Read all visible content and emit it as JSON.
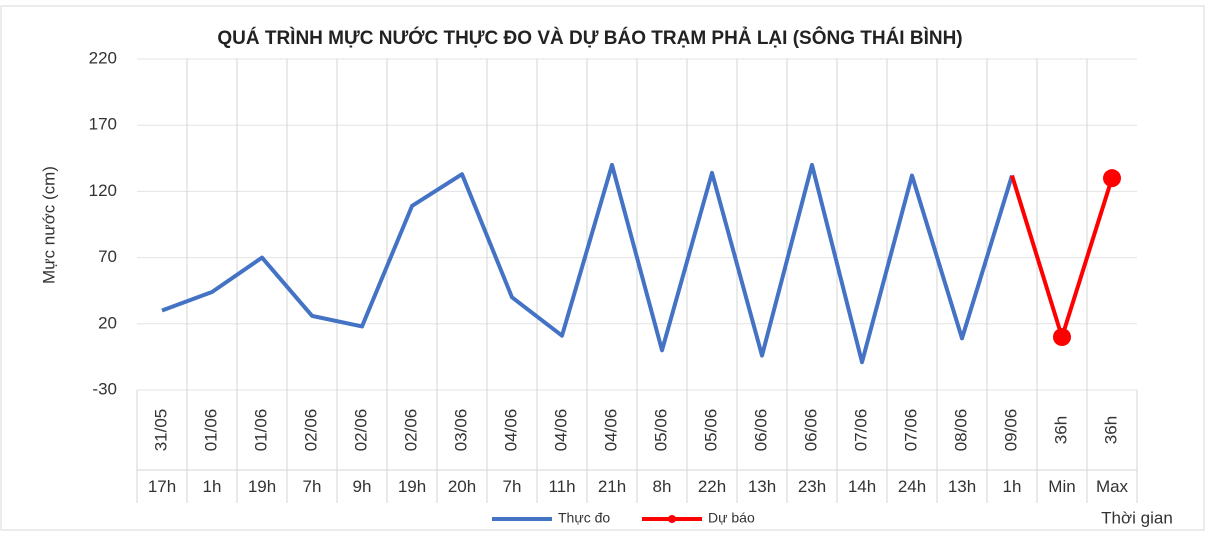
{
  "chart_data": {
    "type": "line",
    "title": "QUÁ TRÌNH MỰC NƯỚC THỰC ĐO VÀ DỰ BÁO TRẠM PHẢ LẠI (SÔNG THÁI BÌNH)",
    "ylabel": "Mực nước (cm)",
    "xlabel": "Thời gian",
    "categories": [
      {
        "date": "31/05",
        "time": "17h"
      },
      {
        "date": "01/06",
        "time": "1h"
      },
      {
        "date": "01/06",
        "time": "19h"
      },
      {
        "date": "02/06",
        "time": "7h"
      },
      {
        "date": "02/06",
        "time": "9h"
      },
      {
        "date": "02/06",
        "time": "19h"
      },
      {
        "date": "03/06",
        "time": "20h"
      },
      {
        "date": "04/06",
        "time": "7h"
      },
      {
        "date": "04/06",
        "time": "11h"
      },
      {
        "date": "04/06",
        "time": "21h"
      },
      {
        "date": "05/06",
        "time": "8h"
      },
      {
        "date": "05/06",
        "time": "22h"
      },
      {
        "date": "06/06",
        "time": "13h"
      },
      {
        "date": "06/06",
        "time": "23h"
      },
      {
        "date": "07/06",
        "time": "14h"
      },
      {
        "date": "07/06",
        "time": "24h"
      },
      {
        "date": "08/06",
        "time": "13h"
      },
      {
        "date": "09/06",
        "time": "1h"
      },
      {
        "date": "36h",
        "time": "Min"
      },
      {
        "date": "36h",
        "time": "Max"
      }
    ],
    "series": [
      {
        "name": "Thực đo",
        "color": "#4472c4",
        "values": [
          30,
          44,
          70,
          26,
          18,
          109,
          133,
          40,
          11,
          140,
          0,
          134,
          -4,
          140,
          -9,
          132,
          9,
          132,
          null,
          null
        ]
      },
      {
        "name": "Dự báo",
        "color": "#ff0000",
        "values": [
          null,
          null,
          null,
          null,
          null,
          null,
          null,
          null,
          null,
          null,
          null,
          null,
          null,
          null,
          null,
          null,
          null,
          132,
          10,
          130
        ]
      }
    ],
    "ylim": [
      -30,
      220
    ],
    "yticks": [
      -30,
      20,
      70,
      120,
      170,
      220
    ],
    "grid": true,
    "legend": "bottom"
  }
}
